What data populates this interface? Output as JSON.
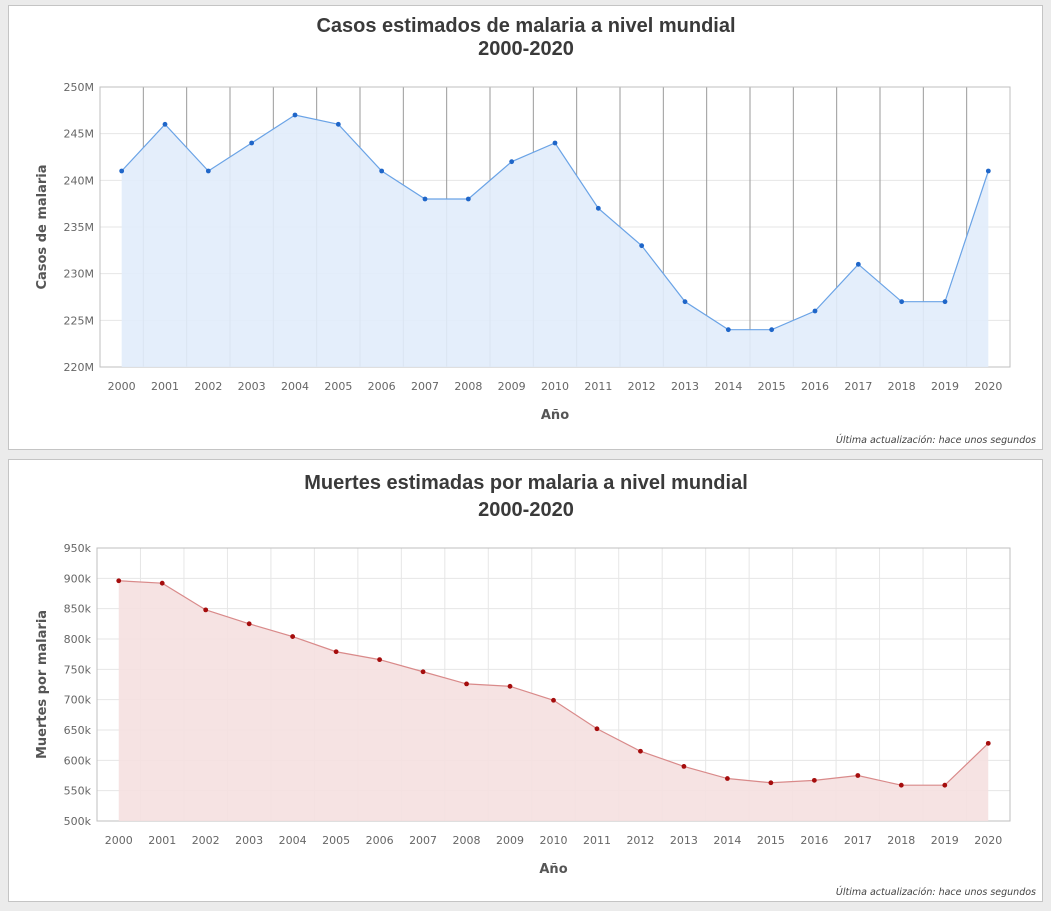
{
  "chart_data": [
    {
      "type": "area",
      "title": [
        "Casos estimados de malaria a nivel mundial",
        "2000-2020"
      ],
      "xlabel": "Año",
      "ylabel": "Casos de malaria",
      "categories": [
        "2000",
        "2001",
        "2002",
        "2003",
        "2004",
        "2005",
        "2006",
        "2007",
        "2008",
        "2009",
        "2010",
        "2011",
        "2012",
        "2013",
        "2014",
        "2015",
        "2016",
        "2017",
        "2018",
        "2019",
        "2020"
      ],
      "series": [
        {
          "values": [
            241000000,
            246000000,
            241000000,
            244000000,
            247000000,
            246000000,
            241000000,
            238000000,
            238000000,
            242000000,
            244000000,
            237000000,
            233000000,
            227000000,
            224000000,
            224000000,
            226000000,
            231000000,
            227000000,
            227000000,
            241000000
          ]
        }
      ],
      "ylim": [
        220000000,
        250000000
      ],
      "yticks": [
        220000000,
        225000000,
        230000000,
        235000000,
        240000000,
        245000000,
        250000000
      ],
      "ytick_labels": [
        "220M",
        "225M",
        "230M",
        "235M",
        "240M",
        "245M",
        "250M"
      ],
      "colors": {
        "line": "#6aa3e6",
        "fill": "#e1ecfb",
        "point": "#1f66c9"
      },
      "grid": "vertical lines between categories, light horizontal lines",
      "footnote": "Última actualización: hace unos segundos"
    },
    {
      "type": "area",
      "title": [
        "Muertes estimadas por malaria a nivel mundial",
        "2000-2020"
      ],
      "xlabel": "Año",
      "ylabel": "Muertes por malaria",
      "categories": [
        "2000",
        "2001",
        "2002",
        "2003",
        "2004",
        "2005",
        "2006",
        "2007",
        "2008",
        "2009",
        "2010",
        "2011",
        "2012",
        "2013",
        "2014",
        "2015",
        "2016",
        "2017",
        "2018",
        "2019",
        "2020"
      ],
      "series": [
        {
          "values": [
            896000,
            892000,
            848000,
            825000,
            804000,
            779000,
            766000,
            746000,
            726000,
            722000,
            699000,
            652000,
            615000,
            590000,
            570000,
            563000,
            567000,
            575000,
            559000,
            559000,
            628000
          ]
        }
      ],
      "ylim": [
        500000,
        950000
      ],
      "yticks": [
        500000,
        550000,
        600000,
        650000,
        700000,
        750000,
        800000,
        850000,
        900000,
        950000
      ],
      "ytick_labels": [
        "500k",
        "550k",
        "600k",
        "650k",
        "700k",
        "750k",
        "800k",
        "850k",
        "900k",
        "950k"
      ],
      "colors": {
        "line": "#d98a8a",
        "fill": "#f5e0e0",
        "point": "#a50d0d"
      },
      "grid": "light grid lines both directions",
      "footnote": "Última actualización: hace unos segundos"
    }
  ]
}
